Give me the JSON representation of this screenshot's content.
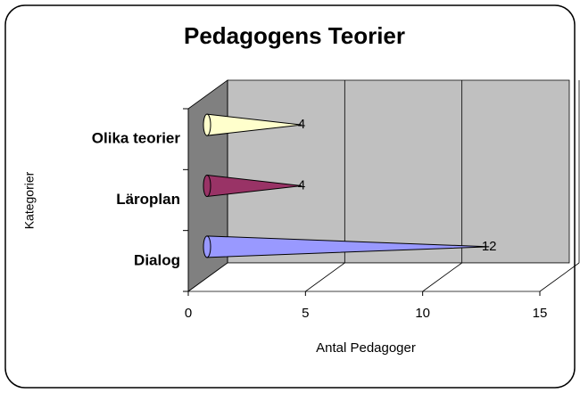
{
  "chart_data": {
    "type": "bar3d_cone",
    "title": "Pedagogens Teorier",
    "categories": [
      "Dialog",
      "Läroplan",
      "Olika teorier"
    ],
    "values": [
      12,
      4,
      4
    ],
    "colors": [
      "#9999ff",
      "#993366",
      "#ffffcc"
    ],
    "xlim": [
      0,
      15
    ],
    "xticks": [
      0,
      5,
      10,
      15
    ],
    "xlabel": "Antal Pedagoger",
    "ylabel": "Kategorier",
    "grid": true
  }
}
